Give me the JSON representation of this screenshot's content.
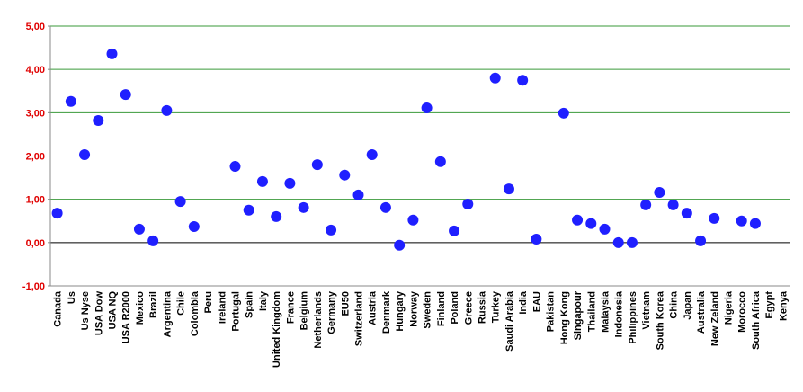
{
  "chart_data": {
    "type": "scatter",
    "categories": [
      "Canada",
      "Us",
      "Us Nyse",
      "USA Dow",
      "USA NQ",
      "USA R2000",
      "Mexico",
      "Brazil",
      "Argentina",
      "Chile",
      "Colombia",
      "Peru",
      "Ireland",
      "Portugal",
      "Spain",
      "Italy",
      "United Kingdom",
      "France",
      "Belgium",
      "Netherlands",
      "Germany",
      "EU50",
      "Switzerland",
      "Austria",
      "Denmark",
      "Hungary",
      "Norway",
      "Sweden",
      "Finland",
      "Poland",
      "Greece",
      "Russia",
      "Turkey",
      "Saudi Arabia",
      "India",
      "EAU",
      "Pakistan",
      "Hong Kong",
      "Singapour",
      "Thailand",
      "Malaysia",
      "Indonesia",
      "Philippines",
      "Vietnam",
      "South Korea",
      "China",
      "Japan",
      "Australia",
      "New Zeland",
      "Nigeria",
      "Morocco",
      "South Africa",
      "Egypt",
      "Kenya"
    ],
    "values": [
      0.68,
      3.26,
      2.03,
      2.82,
      4.36,
      3.42,
      0.31,
      0.04,
      3.05,
      0.95,
      0.37,
      null,
      null,
      1.76,
      0.75,
      1.41,
      0.6,
      1.37,
      0.81,
      1.8,
      0.29,
      1.56,
      1.1,
      2.03,
      0.81,
      -0.06,
      0.52,
      3.11,
      1.87,
      0.27,
      0.89,
      null,
      3.8,
      1.24,
      3.75,
      0.08,
      null,
      2.99,
      0.52,
      0.44,
      0.31,
      0.0,
      0.0,
      0.87,
      1.16,
      0.87,
      0.68,
      0.04,
      0.56,
      null,
      0.5,
      0.44,
      null,
      null
    ],
    "color": "#1f1fff",
    "ylim": [
      -1,
      5
    ],
    "yticks": [
      {
        "value": -1,
        "label": "-1,00"
      },
      {
        "value": 0,
        "label": "0,00"
      },
      {
        "value": 1,
        "label": "1,00"
      },
      {
        "value": 2,
        "label": "2,00"
      },
      {
        "value": 3,
        "label": "3,00"
      },
      {
        "value": 4,
        "label": "4,00"
      },
      {
        "value": 5,
        "label": "5,00"
      }
    ],
    "grid": true,
    "grid_color": "#3a9a3a",
    "tick_label_color": "#e00000"
  }
}
